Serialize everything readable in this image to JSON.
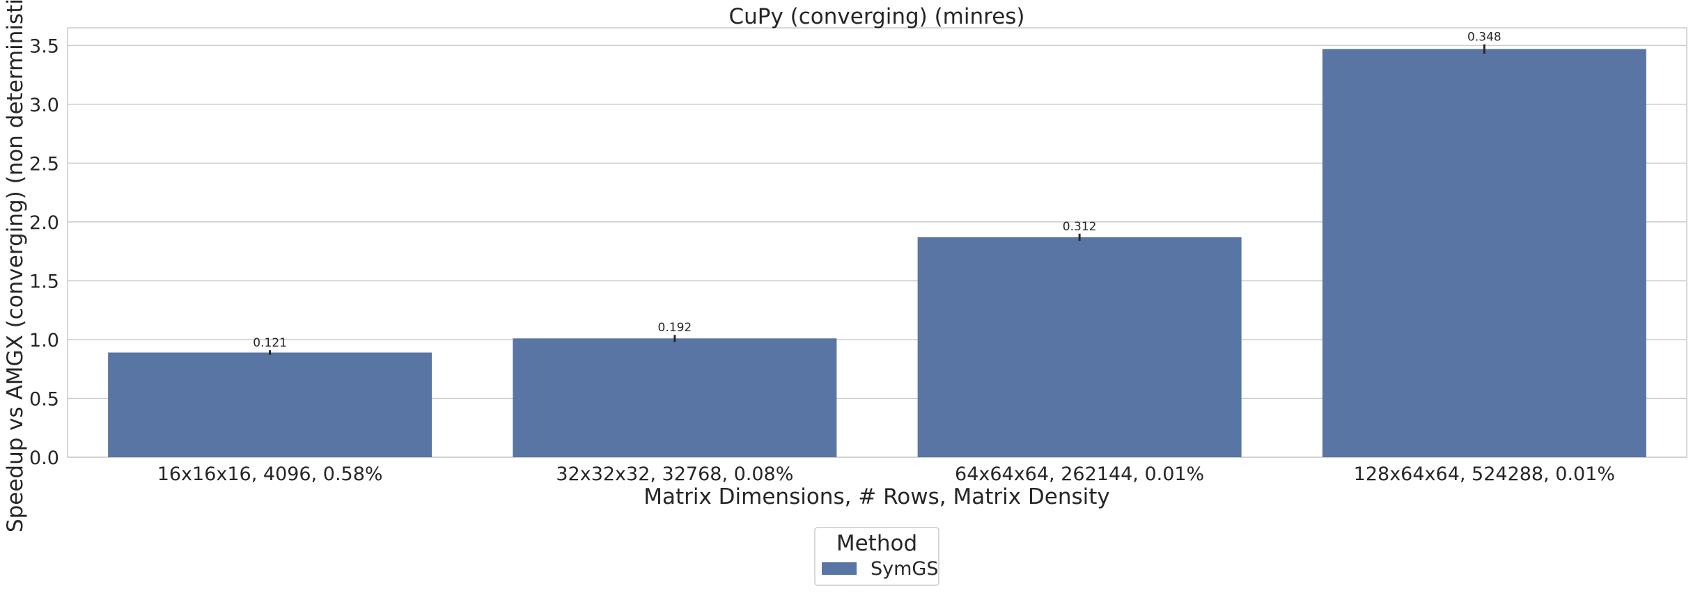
{
  "chart_data": {
    "type": "bar",
    "title": "CuPy (converging) (minres)",
    "xlabel": "Matrix Dimensions, # Rows, Matrix Density",
    "ylabel": "Speedup vs AMGX (converging) (non deterministic)",
    "categories": [
      "16x16x16, 4096, 0.58%",
      "32x32x32, 32768, 0.08%",
      "64x64x64, 262144, 0.01%",
      "128x64x64, 524288, 0.01%"
    ],
    "series": [
      {
        "name": "SymGS",
        "values": [
          0.89,
          1.01,
          1.87,
          3.47
        ],
        "error": [
          0.02,
          0.03,
          0.03,
          0.04
        ],
        "data_labels": [
          "0.121",
          "0.192",
          "0.312",
          "0.348"
        ],
        "color": "#5975a4"
      }
    ],
    "ylim": [
      0,
      3.65
    ],
    "yticks": [
      "0.0",
      "0.5",
      "1.0",
      "1.5",
      "2.0",
      "2.5",
      "3.0",
      "3.5"
    ],
    "grid": "horizontal",
    "legend": {
      "title": "Method",
      "placement": "bottom-center"
    }
  }
}
